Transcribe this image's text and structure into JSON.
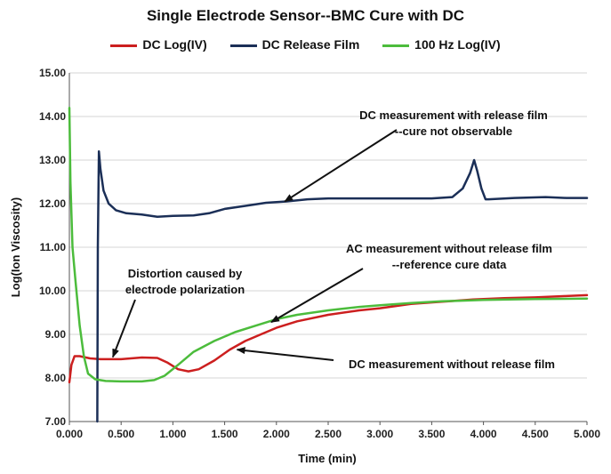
{
  "chart_data": {
    "type": "line",
    "title": "Single Electrode Sensor--BMC Cure with DC",
    "xlabel": "Time (min)",
    "ylabel": "Log(Ion Viscosity)",
    "xlim": [
      0,
      5
    ],
    "ylim": [
      7,
      15
    ],
    "x_ticks": [
      "0.000",
      "0.500",
      "1.000",
      "1.500",
      "2.000",
      "2.500",
      "3.000",
      "3.500",
      "4.000",
      "4.500",
      "5.000"
    ],
    "y_ticks": [
      "7.00",
      "8.00",
      "9.00",
      "10.00",
      "11.00",
      "12.00",
      "13.00",
      "14.00",
      "15.00"
    ],
    "grid": "horizontal",
    "legend_position": "top",
    "series": [
      {
        "name": "DC Log(IV)",
        "color": "#cc1f1f",
        "points": [
          [
            0.0,
            7.9
          ],
          [
            0.02,
            8.3
          ],
          [
            0.05,
            8.5
          ],
          [
            0.1,
            8.5
          ],
          [
            0.2,
            8.45
          ],
          [
            0.3,
            8.43
          ],
          [
            0.5,
            8.43
          ],
          [
            0.7,
            8.47
          ],
          [
            0.85,
            8.46
          ],
          [
            0.95,
            8.35
          ],
          [
            1.05,
            8.2
          ],
          [
            1.15,
            8.15
          ],
          [
            1.25,
            8.2
          ],
          [
            1.4,
            8.4
          ],
          [
            1.55,
            8.65
          ],
          [
            1.7,
            8.85
          ],
          [
            1.85,
            9.0
          ],
          [
            2.0,
            9.15
          ],
          [
            2.2,
            9.3
          ],
          [
            2.5,
            9.45
          ],
          [
            2.8,
            9.55
          ],
          [
            3.0,
            9.6
          ],
          [
            3.3,
            9.7
          ],
          [
            3.6,
            9.75
          ],
          [
            3.9,
            9.8
          ],
          [
            4.2,
            9.83
          ],
          [
            4.5,
            9.85
          ],
          [
            4.8,
            9.88
          ],
          [
            5.0,
            9.9
          ]
        ]
      },
      {
        "name": "DC Release Film",
        "color": "#1b2f57",
        "points": [
          [
            0.27,
            7.0
          ],
          [
            0.275,
            11.0
          ],
          [
            0.285,
            13.2
          ],
          [
            0.3,
            12.8
          ],
          [
            0.33,
            12.3
          ],
          [
            0.38,
            12.0
          ],
          [
            0.45,
            11.85
          ],
          [
            0.55,
            11.78
          ],
          [
            0.7,
            11.75
          ],
          [
            0.85,
            11.7
          ],
          [
            1.0,
            11.72
          ],
          [
            1.2,
            11.73
          ],
          [
            1.35,
            11.78
          ],
          [
            1.5,
            11.88
          ],
          [
            1.7,
            11.95
          ],
          [
            1.9,
            12.02
          ],
          [
            2.1,
            12.05
          ],
          [
            2.3,
            12.1
          ],
          [
            2.5,
            12.12
          ],
          [
            2.8,
            12.12
          ],
          [
            3.2,
            12.12
          ],
          [
            3.5,
            12.12
          ],
          [
            3.7,
            12.15
          ],
          [
            3.8,
            12.35
          ],
          [
            3.87,
            12.7
          ],
          [
            3.91,
            13.0
          ],
          [
            3.94,
            12.75
          ],
          [
            3.98,
            12.35
          ],
          [
            4.02,
            12.1
          ],
          [
            4.05,
            12.1
          ],
          [
            4.3,
            12.13
          ],
          [
            4.6,
            12.15
          ],
          [
            4.8,
            12.13
          ],
          [
            5.0,
            12.13
          ]
        ]
      },
      {
        "name": "100 Hz Log(IV)",
        "color": "#4cbc3c",
        "points": [
          [
            0.0,
            14.2
          ],
          [
            0.01,
            12.5
          ],
          [
            0.03,
            11.0
          ],
          [
            0.06,
            10.2
          ],
          [
            0.1,
            9.2
          ],
          [
            0.14,
            8.5
          ],
          [
            0.18,
            8.1
          ],
          [
            0.25,
            7.97
          ],
          [
            0.35,
            7.93
          ],
          [
            0.5,
            7.92
          ],
          [
            0.7,
            7.92
          ],
          [
            0.82,
            7.95
          ],
          [
            0.92,
            8.05
          ],
          [
            1.05,
            8.3
          ],
          [
            1.2,
            8.6
          ],
          [
            1.4,
            8.85
          ],
          [
            1.6,
            9.05
          ],
          [
            1.8,
            9.2
          ],
          [
            2.0,
            9.35
          ],
          [
            2.2,
            9.45
          ],
          [
            2.5,
            9.55
          ],
          [
            2.8,
            9.63
          ],
          [
            3.0,
            9.67
          ],
          [
            3.3,
            9.72
          ],
          [
            3.6,
            9.76
          ],
          [
            4.0,
            9.79
          ],
          [
            4.5,
            9.81
          ],
          [
            5.0,
            9.82
          ]
        ]
      }
    ],
    "annotations": [
      {
        "lines": [
          "DC measurement with release film",
          "--cure not observable"
        ],
        "arrow_to": [
          2.08,
          12.05
        ]
      },
      {
        "lines": [
          "AC measurement without release film",
          "--reference cure data"
        ],
        "arrow_to": [
          1.95,
          9.28
        ]
      },
      {
        "lines": [
          "Distortion caused by",
          "electrode polarization"
        ],
        "arrow_to": [
          0.42,
          8.48
        ]
      },
      {
        "lines": [
          "DC measurement without release film"
        ],
        "arrow_to": [
          1.62,
          8.65
        ]
      }
    ]
  }
}
